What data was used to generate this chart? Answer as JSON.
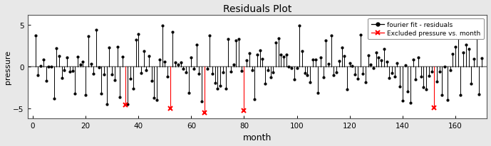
{
  "title": "Residuals Plot",
  "xlabel": "month",
  "ylabel": "pressure",
  "xlim": [
    -2,
    172
  ],
  "ylim": [
    -6.2,
    6.2
  ],
  "yticks": [
    -5,
    0,
    5
  ],
  "xticks": [
    0,
    20,
    40,
    60,
    80,
    100,
    120,
    140,
    160
  ],
  "hline_y": 0,
  "hline_color": "#888888",
  "background_color": "#e8e8e8",
  "axes_bg_color": "#ffffff",
  "red_months": [
    35,
    52,
    65,
    80,
    152
  ],
  "red_residuals": [
    -4.6,
    -5.0,
    -5.5,
    -5.3,
    -4.9
  ],
  "legend_black_label": "fourier fit - residuals",
  "legend_red_label": "Excluded pressure vs. month"
}
